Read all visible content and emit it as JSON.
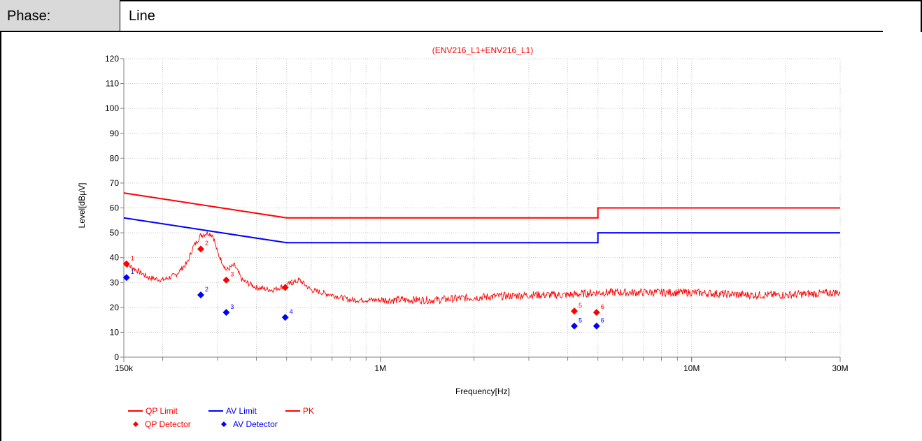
{
  "header": {
    "phase_label": "Phase:",
    "phase_value": "Line"
  },
  "colors": {
    "red": "#ff0000",
    "blue": "#0000ff",
    "grid": "#c8c8c8",
    "axis": "#808080"
  },
  "chart_data": {
    "type": "line",
    "title": "(ENV216_L1+ENV216_L1)",
    "xlabel": "Frequency[Hz]",
    "ylabel": "Level[dBµV]",
    "x_scale": "log",
    "xlim": [
      150000,
      30000000
    ],
    "ylim": [
      0,
      120
    ],
    "y_ticks": [
      0,
      10,
      20,
      30,
      40,
      50,
      60,
      70,
      80,
      90,
      100,
      110,
      120
    ],
    "x_tick_labels": [
      {
        "x": 150000,
        "label": "150k"
      },
      {
        "x": 1000000,
        "label": "1M"
      },
      {
        "x": 10000000,
        "label": "10M"
      },
      {
        "x": 30000000,
        "label": "30M"
      }
    ],
    "grid": true,
    "legend_position": "bottom-left",
    "series": [
      {
        "name": "QP Limit",
        "kind": "line",
        "color": "#ff0000",
        "points": [
          [
            150000,
            66
          ],
          [
            500000,
            56
          ],
          [
            5000000,
            56
          ],
          [
            5000000,
            60
          ],
          [
            30000000,
            60
          ]
        ]
      },
      {
        "name": "AV Limit",
        "kind": "line",
        "color": "#0000ff",
        "points": [
          [
            150000,
            56
          ],
          [
            500000,
            46
          ],
          [
            5000000,
            46
          ],
          [
            5000000,
            50
          ],
          [
            30000000,
            50
          ]
        ]
      },
      {
        "name": "PK",
        "kind": "trace",
        "color": "#ff0000",
        "points": [
          [
            150000,
            38
          ],
          [
            160000,
            36
          ],
          [
            170000,
            34
          ],
          [
            180000,
            32
          ],
          [
            200000,
            31
          ],
          [
            220000,
            33
          ],
          [
            240000,
            38
          ],
          [
            250000,
            44
          ],
          [
            265000,
            49
          ],
          [
            280000,
            50
          ],
          [
            290000,
            49
          ],
          [
            300000,
            42
          ],
          [
            320000,
            35
          ],
          [
            340000,
            37
          ],
          [
            360000,
            31
          ],
          [
            400000,
            28
          ],
          [
            450000,
            27
          ],
          [
            500000,
            29
          ],
          [
            550000,
            31
          ],
          [
            600000,
            27
          ],
          [
            700000,
            25
          ],
          [
            800000,
            23
          ],
          [
            1000000,
            23
          ],
          [
            1500000,
            23
          ],
          [
            2000000,
            24
          ],
          [
            3000000,
            25
          ],
          [
            4000000,
            25
          ],
          [
            5000000,
            26
          ],
          [
            7000000,
            26
          ],
          [
            10000000,
            26
          ],
          [
            15000000,
            25
          ],
          [
            20000000,
            25
          ],
          [
            30000000,
            26
          ]
        ]
      }
    ],
    "markers": [
      {
        "name": "QP Detector",
        "color": "#ff0000",
        "points": [
          [
            153000,
            37.5,
            "1"
          ],
          [
            265000,
            43.5,
            "2"
          ],
          [
            320000,
            31,
            "3"
          ],
          [
            495000,
            28,
            "4"
          ],
          [
            4200000,
            18.5,
            "5"
          ],
          [
            4950000,
            18,
            "6"
          ]
        ]
      },
      {
        "name": "AV Detector",
        "color": "#0000ff",
        "points": [
          [
            153000,
            32,
            "1"
          ],
          [
            265000,
            25,
            "2"
          ],
          [
            320000,
            18,
            "3"
          ],
          [
            495000,
            16,
            "4"
          ],
          [
            4200000,
            12.5,
            "5"
          ],
          [
            4950000,
            12.5,
            "6"
          ]
        ]
      }
    ]
  }
}
